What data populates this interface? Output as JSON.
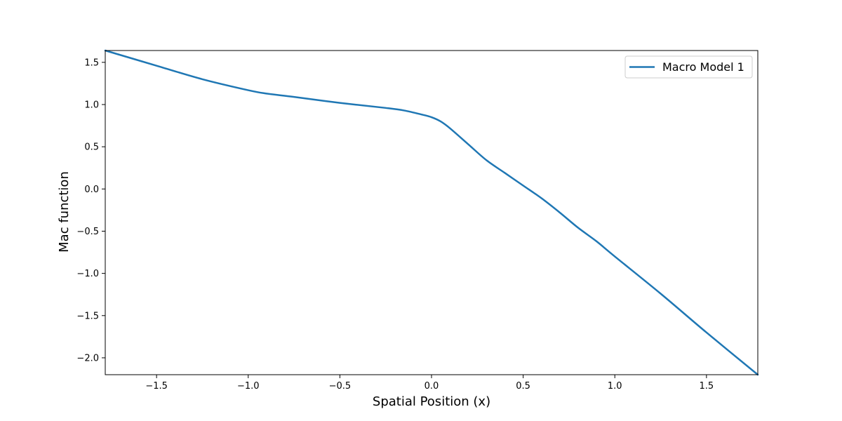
{
  "chart_data": {
    "type": "line",
    "title": "",
    "xlabel": "Spatial Position (x)",
    "ylabel": "Mac function",
    "xlim": [
      -1.78,
      1.78
    ],
    "ylim": [
      -2.2,
      1.64
    ],
    "xticks": [
      -1.5,
      -1.0,
      -0.5,
      0.0,
      0.5,
      1.0,
      1.5
    ],
    "xtick_labels": [
      "−1.5",
      "−1.0",
      "−0.5",
      "0.0",
      "0.5",
      "1.0",
      "1.5"
    ],
    "yticks": [
      1.5,
      1.0,
      0.5,
      0.0,
      -0.5,
      -1.0,
      -1.5,
      -2.0
    ],
    "ytick_labels": [
      "1.5",
      "1.0",
      "0.5",
      "0.0",
      "−0.5",
      "−1.0",
      "−1.5",
      "−2.0"
    ],
    "grid": false,
    "legend_position": "top-right",
    "series": [
      {
        "name": "Macro Model 1",
        "color": "#1f77b4",
        "x": [
          -1.78,
          -1.5,
          -1.25,
          -1.0,
          -0.9,
          -0.75,
          -0.5,
          -0.25,
          -0.15,
          -0.05,
          0.0,
          0.05,
          0.1,
          0.2,
          0.3,
          0.4,
          0.5,
          0.6,
          0.7,
          0.8,
          0.9,
          1.0,
          1.25,
          1.5,
          1.78
        ],
        "y": [
          1.64,
          1.46,
          1.3,
          1.17,
          1.13,
          1.09,
          1.02,
          0.96,
          0.93,
          0.88,
          0.85,
          0.8,
          0.72,
          0.53,
          0.34,
          0.19,
          0.04,
          -0.11,
          -0.28,
          -0.46,
          -0.62,
          -0.8,
          -1.24,
          -1.7,
          -2.2
        ]
      }
    ]
  }
}
